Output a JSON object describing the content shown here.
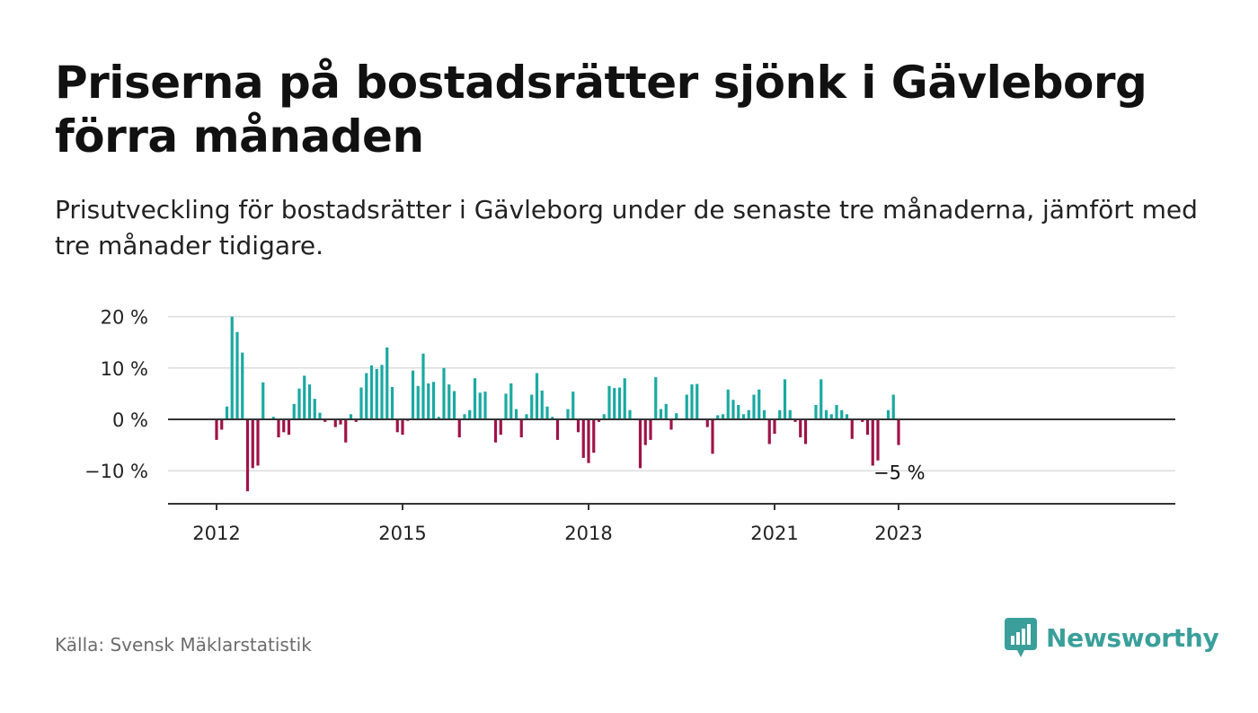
{
  "header": {
    "title": "Priserna på bostadsrätter sjönk i Gävleborg förra månaden",
    "subtitle": "Prisutveckling för bostadsrätter i Gävleborg under de senaste tre månaderna, jämfört med tre månader tidigare."
  },
  "footer": {
    "source": "Källa: Svensk Mäklarstatistik",
    "brand": "Newsworthy",
    "brand_icon": "bar-chart-speech-bubble-icon"
  },
  "colors": {
    "positive": "#1aa9a2",
    "negative": "#9e1447",
    "grid": "#dcdcdc",
    "zero_line": "#333333",
    "brand": "#3a9f9a"
  },
  "chart_data": {
    "type": "bar",
    "start": "2012-01",
    "y_ticks": [
      20,
      10,
      0,
      -10
    ],
    "y_tick_labels": [
      "20 %",
      "10 %",
      "0 %",
      "−10 %"
    ],
    "ylim": [
      -16,
      20
    ],
    "x_tick_labels": [
      {
        "label": "2012",
        "month": "2012-01"
      },
      {
        "label": "2015",
        "month": "2015-01"
      },
      {
        "label": "2018",
        "month": "2018-01"
      },
      {
        "label": "2021",
        "month": "2021-01"
      },
      {
        "label": "2023",
        "month": "2023-01"
      }
    ],
    "grid": true,
    "annotation": {
      "text": "−5 %",
      "month": "2023-01"
    },
    "values": [
      -4,
      -2,
      2.5,
      20,
      17,
      13,
      -14,
      -9.5,
      -9,
      7.2,
      0,
      0.5,
      -3.5,
      -2.5,
      -3,
      3,
      6,
      8.5,
      6.8,
      4,
      1.3,
      -0.5,
      0,
      -1.5,
      -1,
      -4.5,
      1,
      -0.5,
      6.2,
      9,
      10.5,
      9.8,
      10.6,
      14,
      6.3,
      -2.5,
      -3,
      -0.3,
      9.5,
      6.5,
      12.8,
      7,
      7.3,
      0.5,
      10,
      6.8,
      5.5,
      -3.5,
      1,
      1.8,
      8,
      5.2,
      5.4,
      0,
      -4.5,
      -3,
      5,
      7,
      2,
      -3.5,
      1,
      4.8,
      9,
      5.6,
      2.5,
      0.5,
      -4,
      0,
      2,
      5.4,
      -2.5,
      -7.5,
      -8.5,
      -6.5,
      -0.5,
      1,
      6.5,
      6.1,
      6.2,
      8,
      1.8,
      0,
      -9.5,
      -5,
      -4,
      8.2,
      2,
      3,
      -2,
      1.2,
      0,
      4.8,
      6.8,
      6.9,
      0,
      -1.5,
      -6.7,
      0.8,
      1,
      5.8,
      3.8,
      2.8,
      1,
      1.8,
      4.8,
      5.8,
      1.8,
      -4.8,
      -2.8,
      1.8,
      7.8,
      1.8,
      -0.5,
      -3.5,
      -4.8,
      0,
      2.8,
      7.8,
      1.8,
      1,
      2.8,
      1.8,
      1,
      -3.8,
      0,
      -0.5,
      -3,
      -9,
      -8,
      0,
      1.8,
      4.8,
      -5
    ]
  }
}
